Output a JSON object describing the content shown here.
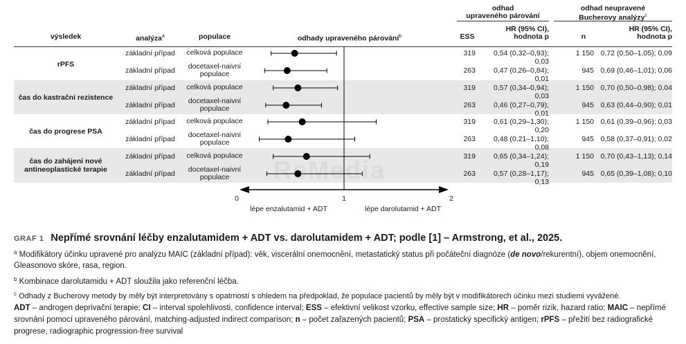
{
  "header": {
    "col_outcome": "výsledek",
    "col_analysis": "analýza",
    "col_analysis_sup": "a",
    "col_population": "populace",
    "col_estimates": "odhady upraveného párování",
    "col_estimates_sup": "b",
    "group1_line1": "odhad",
    "group1_line2": "upraveného párování",
    "group2_line1": "odhad neupravené",
    "group2_line2": "Bucherovy analýzy",
    "group2_sup": "c",
    "col_ess": "ESS",
    "col_hr1_line1": "HR (95% CI),",
    "col_hr1_line2": "hodnota p",
    "col_n": "n",
    "col_hr2_line1": "HR (95% CI),",
    "col_hr2_line2": "hodnota p"
  },
  "outcomes": [
    {
      "label_line1": "rPFS",
      "label_line2": ""
    },
    {
      "label_line1": "čas do kastrační rezistence",
      "label_line2": ""
    },
    {
      "label_line1": "čas do progrese PSA",
      "label_line2": ""
    },
    {
      "label_line1": "čas do zahájení nové",
      "label_line2": "antineoplastické terapie"
    }
  ],
  "rows": [
    {
      "analysis": "základní případ",
      "pop_line1": "celková populace",
      "pop_line2": "",
      "ess": "319",
      "hr1": "0,54 (0,32–0,93); 0,03",
      "n": "1 150",
      "hr2": "0,72 (0,50–1,05); 0,09"
    },
    {
      "analysis": "základní případ",
      "pop_line1": "docetaxel-naivní",
      "pop_line2": "populace",
      "ess": "263",
      "hr1": "0,47 (0,26–0,84); 0,01",
      "n": "945",
      "hr2": "0,69 (0,46–1,01); 0,06"
    },
    {
      "analysis": "základní případ",
      "pop_line1": "celková populace",
      "pop_line2": "",
      "ess": "319",
      "hr1": "0,57 (0,34–0,94); 0,03",
      "n": "1 150",
      "hr2": "0,70 (0,50–0,98); 0,04"
    },
    {
      "analysis": "základní případ",
      "pop_line1": "docetaxel-naivní",
      "pop_line2": "populace",
      "ess": "263",
      "hr1": "0,46 (0,27–0,79); 0,01",
      "n": "945",
      "hr2": "0,63 (0,44–0,90); 0,01"
    },
    {
      "analysis": "základní případ",
      "pop_line1": "celková populace",
      "pop_line2": "",
      "ess": "319",
      "hr1": "0,61 (0,29–1,30); 0,20",
      "n": "1 150",
      "hr2": "0,61 (0,39–0,96); 0,03"
    },
    {
      "analysis": "základní případ",
      "pop_line1": "docetaxel-naivní",
      "pop_line2": "populace",
      "ess": "263",
      "hr1": "0,48 (0,21–1,10); 0,08",
      "n": "945",
      "hr2": "0,58 (0,37–0,91); 0,02"
    },
    {
      "analysis": "základní případ",
      "pop_line1": "celková populace",
      "pop_line2": "",
      "ess": "319",
      "hr1": "0,65 (0,34–1,24); 0,19",
      "n": "1 150",
      "hr2": "0,70 (0,43–1,13); 0,14"
    },
    {
      "analysis": "základní případ",
      "pop_line1": "docetaxel-naivní",
      "pop_line2": "populace",
      "ess": "263",
      "hr1": "0,57 (0,28–1,17); 0,13",
      "n": "945",
      "hr2": "0,65 (0,39–1,08); 0,10"
    }
  ],
  "chart_data": {
    "type": "forest",
    "xlim": [
      0,
      2
    ],
    "reference": 1,
    "ticks": [
      "0",
      "1",
      "2"
    ],
    "tick_values": [
      0,
      1,
      2
    ],
    "left_label": "lépe enzalutamid + ADT",
    "right_label": "lépe darolutamid + ADT",
    "series": [
      {
        "name": "rPFS – celková populace",
        "hr": 0.54,
        "lo": 0.32,
        "hi": 0.93
      },
      {
        "name": "rPFS – docetaxel-naivní populace",
        "hr": 0.47,
        "lo": 0.26,
        "hi": 0.84
      },
      {
        "name": "čas do kastrační rezistence – celková populace",
        "hr": 0.57,
        "lo": 0.34,
        "hi": 0.94
      },
      {
        "name": "čas do kastrační rezistence – docetaxel-naivní populace",
        "hr": 0.46,
        "lo": 0.27,
        "hi": 0.79
      },
      {
        "name": "čas do progrese PSA – celková populace",
        "hr": 0.61,
        "lo": 0.29,
        "hi": 1.3
      },
      {
        "name": "čas do progrese PSA – docetaxel-naivní populace",
        "hr": 0.48,
        "lo": 0.21,
        "hi": 1.1
      },
      {
        "name": "čas do zahájení nové antineoplastické terapie – celková populace",
        "hr": 0.65,
        "lo": 0.34,
        "hi": 1.24
      },
      {
        "name": "čas do zahájení nové antineoplastické terapie – docetaxel-naivní populace",
        "hr": 0.57,
        "lo": 0.28,
        "hi": 1.17
      }
    ]
  },
  "caption": {
    "label": "GRAF 1",
    "title": "Nepřímé srovnání léčby enzalutamidem + ADT vs. darolutamidem + ADT; podle [1] – Armstrong, et al., 2025."
  },
  "notes": {
    "a_sup": "a",
    "a_text_1": "Modifikátory účinku upravené pro analýzu MAIC (základní případ): věk, viscerální onemocnění, metastatický status při počáteční diagnóze (",
    "a_text_bold": "de novo",
    "a_text_2": "/rekurentní), objem onemocnění, Gleasonovo skóre, rasa, region.",
    "b_sup": "b",
    "b_text": "Kombinace darolutamidu + ADT sloužila jako referenční léčba.",
    "c_sup": "c",
    "c_text": "Odhady z Bucherovy metody by měly být interpretovány s opatrností s ohledem na předpoklad, že populace pacientů by měly být v modifikátorech účinku mezi studiemi vyvážené."
  },
  "abbreviations": [
    {
      "abbr": "ADT",
      "text": " – androgen deprivační terapie; "
    },
    {
      "abbr": "CI",
      "text": " – interval spolehlivosti, confidence interval; "
    },
    {
      "abbr": "ESS",
      "text": " – efektivní velikost vzorku, effective sample size; "
    },
    {
      "abbr": "HR",
      "text": " – poměr rizik, hazard ratio; "
    },
    {
      "abbr": "MAIC",
      "text": " – nepřímé srovnání pomocí upraveného párování, matching-adjusted indirect comparison; "
    },
    {
      "abbr": "n",
      "text": " – počet zařazených pacientů; "
    },
    {
      "abbr": "PSA",
      "text": " – prostatický specifický antigen; "
    },
    {
      "abbr": "rPFS",
      "text": " – přežití bez radiografické progrese, radiographic progression-free survival"
    }
  ],
  "watermark": "ReMedia",
  "colors": {
    "band": "#e8e8e8",
    "text": "#1a1a1a",
    "marker": "#000000"
  }
}
